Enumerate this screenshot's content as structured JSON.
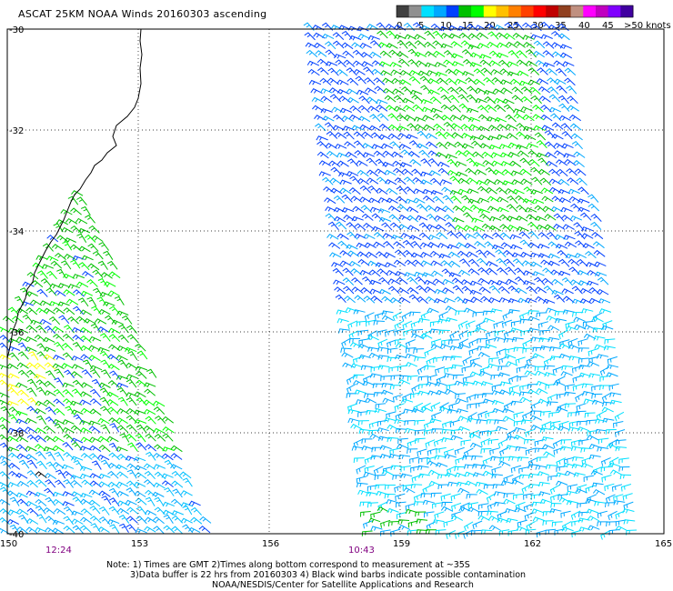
{
  "title": "ASCAT 25KM NOAA Winds 20160303 ascending",
  "colors": {
    "coast": "#000000",
    "grid": "#000000",
    "time_label": "#800080"
  },
  "legend": {
    "labels": [
      "0",
      "5",
      "10",
      "15",
      "20",
      "25",
      "30",
      "35",
      "40",
      "45",
      ">50 knots"
    ],
    "swatches": [
      "#404040",
      "#909090",
      "#00e0ff",
      "#00a8ff",
      "#0040ff",
      "#00c000",
      "#00ff00",
      "#ffff00",
      "#ffc000",
      "#ff8000",
      "#ff4000",
      "#ff0000",
      "#c00000",
      "#904020",
      "#c09080",
      "#ff00ff",
      "#c000c0",
      "#8000ff",
      "#4000a0"
    ]
  },
  "map": {
    "lat_labels": [
      "-30",
      "-32",
      "-34",
      "-36",
      "-38",
      "-40"
    ],
    "lon_labels": [
      "150",
      "153",
      "156",
      "159",
      "162",
      "165"
    ],
    "time_labels": [
      "12:24",
      "10:43"
    ]
  },
  "notes": {
    "line1": "Note: 1) Times are GMT 2)Times along bottom correspond to measurement at ~35S",
    "line2": "3)Data buffer is 22 hrs from 20160303 4) Black wind barbs indicate possible contamination",
    "line3": "NOAA/NESDIS/Center for Satellite Applications and Research"
  }
}
